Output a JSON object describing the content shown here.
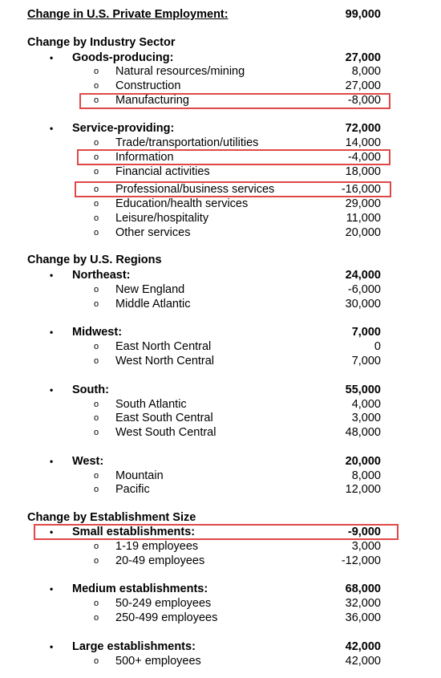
{
  "title": {
    "label": "Change in U.S. Private Employment:",
    "value": "99,000"
  },
  "bullets": {
    "main": "•",
    "sub": "o"
  },
  "industry": {
    "heading": "Change by Industry Sector",
    "goods": {
      "label": "Goods-producing:",
      "value": "27,000",
      "items": [
        {
          "label": "Natural resources/mining",
          "value": "8,000"
        },
        {
          "label": "Construction",
          "value": "27,000"
        },
        {
          "label": "Manufacturing",
          "value": "-8,000"
        }
      ]
    },
    "services": {
      "label": "Service-providing:",
      "value": "72,000",
      "items": [
        {
          "label": "Trade/transportation/utilities",
          "value": "14,000"
        },
        {
          "label": "Information",
          "value": "-4,000"
        },
        {
          "label": "Financial activities",
          "value": "18,000"
        },
        {
          "label": "Professional/business services",
          "value": "-16,000"
        },
        {
          "label": "Education/health services",
          "value": "29,000"
        },
        {
          "label": "Leisure/hospitality",
          "value": "11,000"
        },
        {
          "label": "Other services",
          "value": "20,000"
        }
      ]
    }
  },
  "regions": {
    "heading": "Change by U.S. Regions",
    "northeast": {
      "label": "Northeast:",
      "value": "24,000",
      "items": [
        {
          "label": "New England",
          "value": "-6,000"
        },
        {
          "label": "Middle Atlantic",
          "value": "30,000"
        }
      ]
    },
    "midwest": {
      "label": "Midwest:",
      "value": "7,000",
      "items": [
        {
          "label": "East North Central",
          "value": "0"
        },
        {
          "label": "West North Central",
          "value": "7,000"
        }
      ]
    },
    "south": {
      "label": "South:",
      "value": "55,000",
      "items": [
        {
          "label": "South Atlantic",
          "value": "4,000"
        },
        {
          "label": "East South Central",
          "value": "3,000"
        },
        {
          "label": "West South Central",
          "value": "48,000"
        }
      ]
    },
    "west": {
      "label": "West:",
      "value": "20,000",
      "items": [
        {
          "label": "Mountain",
          "value": "8,000"
        },
        {
          "label": "Pacific",
          "value": "12,000"
        }
      ]
    }
  },
  "size": {
    "heading": "Change by Establishment Size",
    "small": {
      "label": "Small establishments:",
      "value": "-9,000",
      "items": [
        {
          "label": "1-19 employees",
          "value": "3,000"
        },
        {
          "label": "20-49 employees",
          "value": "-12,000"
        }
      ]
    },
    "medium": {
      "label": "Medium establishments:",
      "value": "68,000",
      "items": [
        {
          "label": "50-249 employees",
          "value": "32,000"
        },
        {
          "label": "250-499 employees",
          "value": "36,000"
        }
      ]
    },
    "large": {
      "label": "Large establishments:",
      "value": "42,000",
      "items": [
        {
          "label": "500+ employees",
          "value": "42,000"
        }
      ]
    }
  },
  "highlight_color": "#e04848"
}
